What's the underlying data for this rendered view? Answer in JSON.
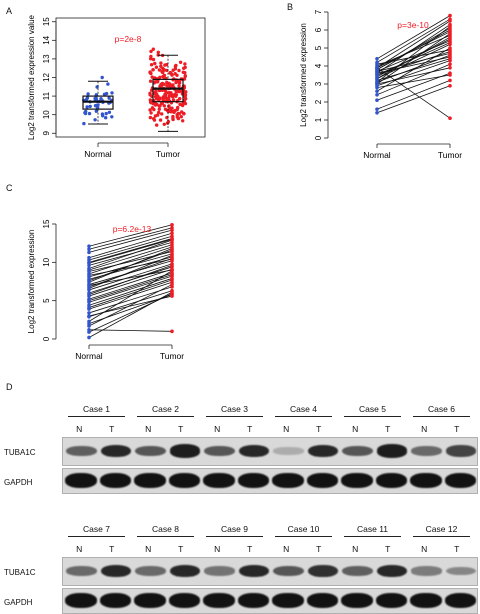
{
  "panels": {
    "a_label": "A",
    "b_label": "B",
    "c_label": "C",
    "d_label": "D"
  },
  "chart_data": [
    {
      "id": "A",
      "type": "box-scatter",
      "title": "p=2e-8",
      "ylabel": "Log2 transformed expression value",
      "xlabel": "",
      "categories": [
        "Normal",
        "Tumor"
      ],
      "ylim": [
        8.8,
        15.2
      ],
      "yticks": [
        9,
        10,
        11,
        12,
        13,
        14,
        15
      ],
      "colors": {
        "Normal": "#3355cc",
        "Tumor": "#ee1c24",
        "pvalue": "#ee1c24"
      },
      "boxes": [
        {
          "name": "Normal",
          "min": 9.5,
          "q1": 10.3,
          "median": 10.7,
          "q3": 11.0,
          "max": 11.8,
          "n": 45
        },
        {
          "name": "Tumor",
          "min": 9.1,
          "q1": 10.7,
          "median": 11.4,
          "q3": 11.9,
          "max": 13.2,
          "n": 230
        }
      ]
    },
    {
      "id": "B",
      "type": "paired-line",
      "title": "p=3e-10",
      "ylabel": "Log2 transformed expression",
      "xlabel": "",
      "categories": [
        "Normal",
        "Tumor"
      ],
      "ylim": [
        0,
        7
      ],
      "yticks": [
        0,
        1,
        2,
        3,
        4,
        5,
        6,
        7
      ],
      "colors": {
        "Normal": "#3355cc",
        "Tumor": "#ee1c24",
        "line": "#111111",
        "pvalue": "#ee1c24"
      },
      "normal": [
        4.2,
        3.9,
        3.7,
        3.5,
        3.8,
        4.0,
        3.3,
        3.1,
        3.6,
        2.9,
        3.4,
        3.8,
        4.1,
        2.6,
        2.1,
        1.6,
        3.0,
        3.2,
        3.9,
        3.7,
        2.4,
        1.4,
        3.5,
        3.0,
        3.3,
        4.4,
        3.6,
        2.8,
        3.9,
        3.1
      ],
      "tumor": [
        6.6,
        5.9,
        5.4,
        4.8,
        6.1,
        5.7,
        5.2,
        4.6,
        6.3,
        4.3,
        5.5,
        6.0,
        4.9,
        5.0,
        3.6,
        3.2,
        5.8,
        4.4,
        6.5,
        4.7,
        4.1,
        2.9,
        5.3,
        3.9,
        5.6,
        6.8,
        4.5,
        3.5,
        1.1,
        6.2
      ]
    },
    {
      "id": "C",
      "type": "paired-line",
      "title": "p=6.2e-13",
      "ylabel": "Log2 transformed expression",
      "xlabel": "",
      "categories": [
        "Normal",
        "Tumor"
      ],
      "ylim": [
        0,
        15
      ],
      "yticks": [
        0,
        5,
        10,
        15
      ],
      "colors": {
        "Normal": "#3355cc",
        "Tumor": "#ee1c24",
        "line": "#111111",
        "pvalue": "#ee1c24"
      },
      "normal": [
        12.1,
        11.3,
        10.6,
        10.0,
        9.6,
        9.2,
        8.8,
        8.5,
        8.1,
        7.8,
        7.4,
        7.1,
        6.8,
        6.4,
        6.0,
        5.6,
        5.2,
        4.8,
        4.4,
        3.9,
        3.4,
        2.9,
        2.3,
        1.7,
        0.9,
        0.2,
        11.7,
        10.3,
        9.0,
        7.6,
        6.6,
        5.8,
        4.1,
        3.0,
        8.3,
        9.9,
        7.0,
        5.0,
        2.0,
        1.2
      ],
      "tumor": [
        14.9,
        14.2,
        13.8,
        13.1,
        12.6,
        12.9,
        11.4,
        12.0,
        11.1,
        10.7,
        11.8,
        10.2,
        10.5,
        9.8,
        9.4,
        9.1,
        8.6,
        8.2,
        7.9,
        7.4,
        6.8,
        6.3,
        8.9,
        7.1,
        5.9,
        6.1,
        14.5,
        13.4,
        12.3,
        11.6,
        10.9,
        9.6,
        7.7,
        5.6,
        10.4,
        13.0,
        9.0,
        8.4,
        5.8,
        1.0
      ]
    }
  ],
  "western_blot": {
    "row1_cases": [
      "Case 1",
      "Case 2",
      "Case 3",
      "Case 4",
      "Case 5",
      "Case 6"
    ],
    "row2_cases": [
      "Case 7",
      "Case 8",
      "Case 9",
      "Case 10",
      "Case 11",
      "Case 12"
    ],
    "n_label": "N",
    "t_label": "T",
    "protein_label": "TUBA1C",
    "control_label": "GAPDH",
    "row1_tuba1c_intensity": [
      0.55,
      0.85,
      0.6,
      0.9,
      0.6,
      0.85,
      0.15,
      0.85,
      0.6,
      0.9,
      0.5,
      0.7
    ],
    "row2_tuba1c_intensity": [
      0.5,
      0.85,
      0.5,
      0.85,
      0.45,
      0.85,
      0.6,
      0.8,
      0.55,
      0.85,
      0.4,
      0.35
    ]
  }
}
